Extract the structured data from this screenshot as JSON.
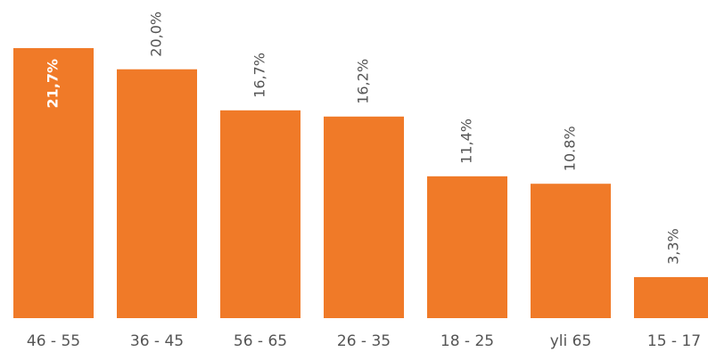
{
  "chart_data": {
    "type": "bar",
    "categories": [
      "46 - 55",
      "36 - 45",
      "56 - 65",
      "26 - 35",
      "18 - 25",
      "yli 65",
      "15 - 17"
    ],
    "values": [
      21.7,
      20.0,
      16.7,
      16.2,
      11.4,
      10.8,
      3.3
    ],
    "value_labels": [
      "21,7%",
      "20,0%",
      "16,7%",
      "16,2%",
      "11,4%",
      "10.8%",
      "3,3%"
    ],
    "ylim": [
      0,
      21.7
    ],
    "grid": false,
    "colors": {
      "bar": "#f07a28",
      "label_outside": "#555555",
      "label_inside": "#ffffff",
      "category": "#555555"
    }
  }
}
